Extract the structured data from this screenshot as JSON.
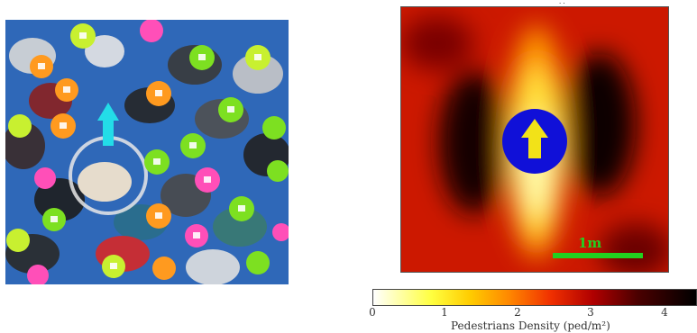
{
  "figure": {
    "top_label": "· ·",
    "scale_bar_label": "1m",
    "colorbar": {
      "label": "Pedestrians Density (ped/m²)",
      "ticks": [
        "0",
        "1",
        "2",
        "3",
        "4"
      ],
      "range": [
        0,
        4.5
      ]
    },
    "colors": {
      "crowd_floor": "#2f68b8",
      "direction_arrow_photo": "#23dde8",
      "target_circle": "#1010d8",
      "target_arrow": "#f2e218",
      "scale_bar": "#22d020"
    },
    "hat_colors": [
      "#7de021",
      "#ff9a1f",
      "#ff4fb8",
      "#c8f030"
    ]
  }
}
